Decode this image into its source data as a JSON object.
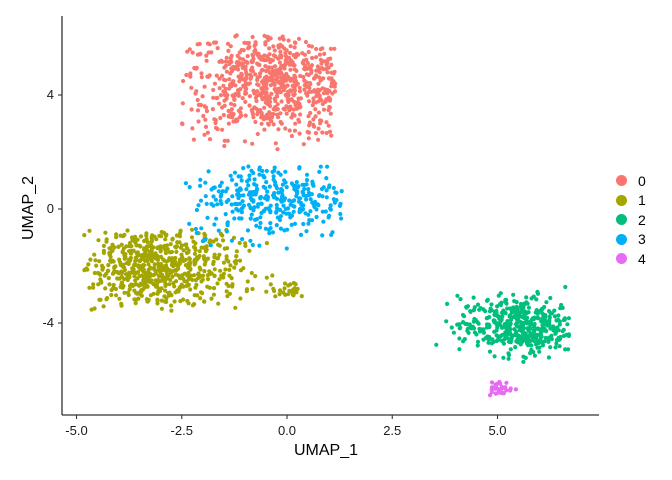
{
  "chart_data": {
    "type": "scatter",
    "title": "",
    "xlabel": "UMAP_1",
    "ylabel": "UMAP_2",
    "xlim": [
      -5.35,
      7.35
    ],
    "ylim": [
      -7.1,
      6.9
    ],
    "x_ticks": [
      -5.0,
      -2.5,
      0.0,
      2.5,
      5.0
    ],
    "x_tick_labels": [
      "-5.0",
      "-2.5",
      "0.0",
      "2.5",
      "5.0"
    ],
    "y_ticks": [
      -4,
      0,
      4
    ],
    "y_tick_labels": [
      "-4",
      "0",
      "4"
    ],
    "grid": false,
    "legend_position": "right",
    "legend": [
      {
        "label": "0",
        "color": "#F8766D"
      },
      {
        "label": "1",
        "color": "#A3A500"
      },
      {
        "label": "2",
        "color": "#00BF7D"
      },
      {
        "label": "3",
        "color": "#00B0F6"
      },
      {
        "label": "4",
        "color": "#E76BF3"
      }
    ],
    "series": [
      {
        "name": "0",
        "color": "#F8766D",
        "n": 700,
        "center": [
          -0.3,
          4.4
        ],
        "spread": [
          1.15,
          0.95
        ],
        "x_range": [
          -2.5,
          1.15
        ],
        "y_range": [
          2.0,
          6.1
        ]
      },
      {
        "name": "1",
        "color": "#A3A500",
        "n": 650,
        "center": [
          -3.1,
          -2.1
        ],
        "spread": [
          1.0,
          0.75
        ],
        "x_range": [
          -4.85,
          -0.3
        ],
        "y_range": [
          -3.6,
          -0.7
        ]
      },
      {
        "name": "1b",
        "color": "#A3A500",
        "n": 25,
        "center": [
          0.05,
          -2.85
        ],
        "spread": [
          0.2,
          0.15
        ],
        "x_range": [
          -0.4,
          0.4
        ],
        "y_range": [
          -3.2,
          -2.5
        ]
      },
      {
        "name": "3",
        "color": "#00B0F6",
        "n": 330,
        "center": [
          -0.3,
          0.4
        ],
        "spread": [
          1.0,
          0.7
        ],
        "x_range": [
          -2.55,
          1.3
        ],
        "y_range": [
          -1.4,
          1.5
        ]
      },
      {
        "name": "2",
        "color": "#00BF7D",
        "n": 440,
        "center": [
          5.5,
          -4.1
        ],
        "spread": [
          0.7,
          0.5
        ],
        "x_range": [
          3.1,
          6.7
        ],
        "y_range": [
          -5.5,
          -2.7
        ]
      },
      {
        "name": "4",
        "color": "#E76BF3",
        "n": 35,
        "center": [
          5.05,
          -6.3
        ],
        "spread": [
          0.15,
          0.12
        ],
        "x_range": [
          4.6,
          5.5
        ],
        "y_range": [
          -6.6,
          -5.9
        ]
      }
    ]
  }
}
